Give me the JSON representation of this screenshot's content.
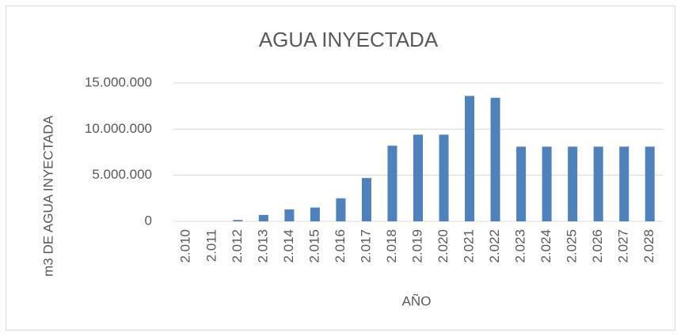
{
  "chart_data": {
    "type": "bar",
    "title": "AGUA INYECTADA",
    "y_label": "m3 DE AGUA INYECTADA",
    "x_label": "AÑO",
    "categories": [
      "2.010",
      "2.011",
      "2.012",
      "2.013",
      "2.014",
      "2.015",
      "2.016",
      "2.017",
      "2.018",
      "2.019",
      "2.020",
      "2.021",
      "2.022",
      "2.023",
      "2.024",
      "2.025",
      "2.026",
      "2.027",
      "2.028"
    ],
    "values": [
      0,
      0,
      150000,
      700000,
      1300000,
      1500000,
      2500000,
      4700000,
      8200000,
      9400000,
      9400000,
      13600000,
      13400000,
      8100000,
      8100000,
      8100000,
      8100000,
      8100000,
      8100000
    ],
    "color": "#4f81bd",
    "ylim": [
      0,
      15000000
    ],
    "yticks": [
      0,
      {
        "value": 5000000,
        "label": "5.000.000"
      },
      {
        "value": 10000000,
        "label": "10.000.000"
      },
      {
        "value": 15000000,
        "label": "15.000.000"
      }
    ],
    "grid": true
  }
}
